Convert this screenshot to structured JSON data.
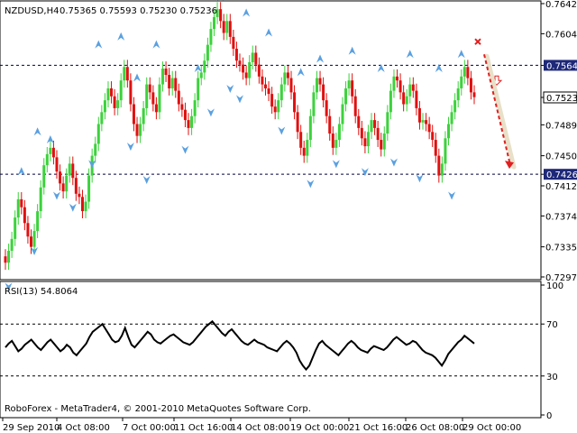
{
  "chart_data": [
    {
      "type": "candlestick",
      "symbol": "NZDUSD,H4",
      "ohlc_header": "0.75365 0.75593 0.75230 0.75236",
      "ylim": [
        0.7297,
        0.7642
      ],
      "y_ticks": [
        "0.76420",
        "0.76040",
        "0.75641",
        "0.75236",
        "0.74890",
        "0.74500",
        "0.74266",
        "0.74120",
        "0.73740",
        "0.73350",
        "0.72970"
      ],
      "level_labels": {
        "resistance": "0.75641",
        "support": "0.74266",
        "current": "0.75236"
      },
      "levels": {
        "resistance": 0.75641,
        "support": 0.74266,
        "current": 0.75236
      },
      "x_ticks": [
        "29 Sep 2010",
        "4 Oct 08:00",
        "7 Oct 00:00",
        "11 Oct 16:00",
        "14 Oct 08:00",
        "19 Oct 00:00",
        "21 Oct 16:00",
        "26 Oct 08:00",
        "29 Oct 00:00"
      ],
      "closes": [
        0.7315,
        0.733,
        0.7345,
        0.7372,
        0.7395,
        0.7385,
        0.7365,
        0.7348,
        0.7335,
        0.7355,
        0.738,
        0.741,
        0.7438,
        0.7452,
        0.746,
        0.7448,
        0.743,
        0.7415,
        0.7405,
        0.7425,
        0.744,
        0.7422,
        0.7402,
        0.7398,
        0.738,
        0.7392,
        0.7425,
        0.745,
        0.7465,
        0.749,
        0.7505,
        0.752,
        0.7535,
        0.7525,
        0.751,
        0.752,
        0.7545,
        0.7562,
        0.7545,
        0.7515,
        0.749,
        0.7475,
        0.749,
        0.751,
        0.754,
        0.753,
        0.7515,
        0.7505,
        0.754,
        0.756,
        0.7552,
        0.7535,
        0.7548,
        0.7532,
        0.7515,
        0.7508,
        0.7495,
        0.7485,
        0.75,
        0.752,
        0.7548,
        0.7555,
        0.757,
        0.759,
        0.761,
        0.7625,
        0.7635,
        0.762,
        0.7605,
        0.762,
        0.76,
        0.7585,
        0.757,
        0.7565,
        0.7555,
        0.7548,
        0.7568,
        0.758,
        0.7565,
        0.755,
        0.754,
        0.7535,
        0.7528,
        0.7512,
        0.7505,
        0.752,
        0.754,
        0.7555,
        0.7548,
        0.753,
        0.7505,
        0.748,
        0.746,
        0.745,
        0.747,
        0.75,
        0.753,
        0.7548,
        0.754,
        0.752,
        0.75,
        0.7478,
        0.746,
        0.747,
        0.749,
        0.7515,
        0.7535,
        0.7545,
        0.7525,
        0.75,
        0.7485,
        0.7472,
        0.7462,
        0.748,
        0.7495,
        0.7485,
        0.747,
        0.7458,
        0.7478,
        0.7505,
        0.7532,
        0.755,
        0.7545,
        0.753,
        0.7515,
        0.7525,
        0.754,
        0.7532,
        0.751,
        0.7492,
        0.7495,
        0.749,
        0.748,
        0.747,
        0.745,
        0.7425,
        0.744,
        0.7472,
        0.749,
        0.7505,
        0.752,
        0.7535,
        0.755,
        0.7562,
        0.7548,
        0.753,
        0.7524
      ],
      "up_arrows": [
        [
          5,
          0.743
        ],
        [
          10,
          0.748
        ],
        [
          14,
          0.747
        ],
        [
          29,
          0.759
        ],
        [
          36,
          0.76
        ],
        [
          41,
          0.7548
        ],
        [
          47,
          0.759
        ],
        [
          60,
          0.756
        ],
        [
          67,
          0.765
        ],
        [
          75,
          0.763
        ],
        [
          82,
          0.7605
        ],
        [
          92,
          0.7555
        ],
        [
          98,
          0.7572
        ],
        [
          108,
          0.7582
        ],
        [
          117,
          0.756
        ],
        [
          126,
          0.7578
        ],
        [
          135,
          0.756
        ],
        [
          142,
          0.7578
        ]
      ],
      "down_arrows": [
        [
          1,
          0.7285
        ],
        [
          9,
          0.733
        ],
        [
          16,
          0.74
        ],
        [
          21,
          0.7385
        ],
        [
          27,
          0.744
        ],
        [
          39,
          0.7462
        ],
        [
          44,
          0.742
        ],
        [
          56,
          0.7458
        ],
        [
          64,
          0.7505
        ],
        [
          70,
          0.7535
        ],
        [
          73,
          0.7522
        ],
        [
          86,
          0.7482
        ],
        [
          95,
          0.7415
        ],
        [
          103,
          0.744
        ],
        [
          112,
          0.743
        ],
        [
          121,
          0.7442
        ],
        [
          129,
          0.7422
        ],
        [
          139,
          0.74
        ]
      ]
    },
    {
      "type": "line",
      "title": "RSI(13) 54.8064",
      "ylim": [
        0,
        100
      ],
      "y_ticks": [
        "100",
        "70",
        "30",
        "0"
      ],
      "levels": [
        70,
        30
      ],
      "values": [
        52,
        55,
        57,
        53,
        49,
        51,
        54,
        56,
        58,
        55,
        52,
        50,
        53,
        56,
        58,
        55,
        52,
        49,
        51,
        54,
        52,
        48,
        46,
        49,
        52,
        55,
        60,
        64,
        66,
        68,
        70,
        66,
        62,
        58,
        56,
        57,
        61,
        67,
        60,
        54,
        52,
        55,
        58,
        61,
        64,
        62,
        58,
        56,
        55,
        57,
        59,
        61,
        62,
        60,
        58,
        56,
        55,
        54,
        56,
        59,
        62,
        65,
        68,
        70,
        72,
        69,
        66,
        63,
        61,
        64,
        66,
        63,
        60,
        57,
        55,
        54,
        56,
        58,
        56,
        55,
        54,
        52,
        51,
        50,
        49,
        52,
        55,
        57,
        55,
        52,
        48,
        42,
        38,
        35,
        38,
        44,
        50,
        55,
        57,
        54,
        52,
        50,
        48,
        46,
        49,
        52,
        55,
        57,
        55,
        52,
        50,
        49,
        48,
        51,
        53,
        52,
        51,
        50,
        52,
        55,
        58,
        60,
        58,
        56,
        54,
        55,
        57,
        56,
        53,
        50,
        48,
        47,
        46,
        44,
        41,
        38,
        42,
        47,
        50,
        53,
        56,
        58,
        61,
        59,
        57,
        55
      ]
    }
  ],
  "footer": {
    "credit": "RoboForex - MetaTrader4, © 2001-2010 MetaQuotes Software Corp."
  },
  "colors": {
    "up": "#3cd23c",
    "down": "#e01010",
    "arrow": "#5aa0e0",
    "forecast": "#e02020",
    "rsi_line": "#000000",
    "grid": "#1e2878",
    "label_bg": "#1e2878"
  }
}
